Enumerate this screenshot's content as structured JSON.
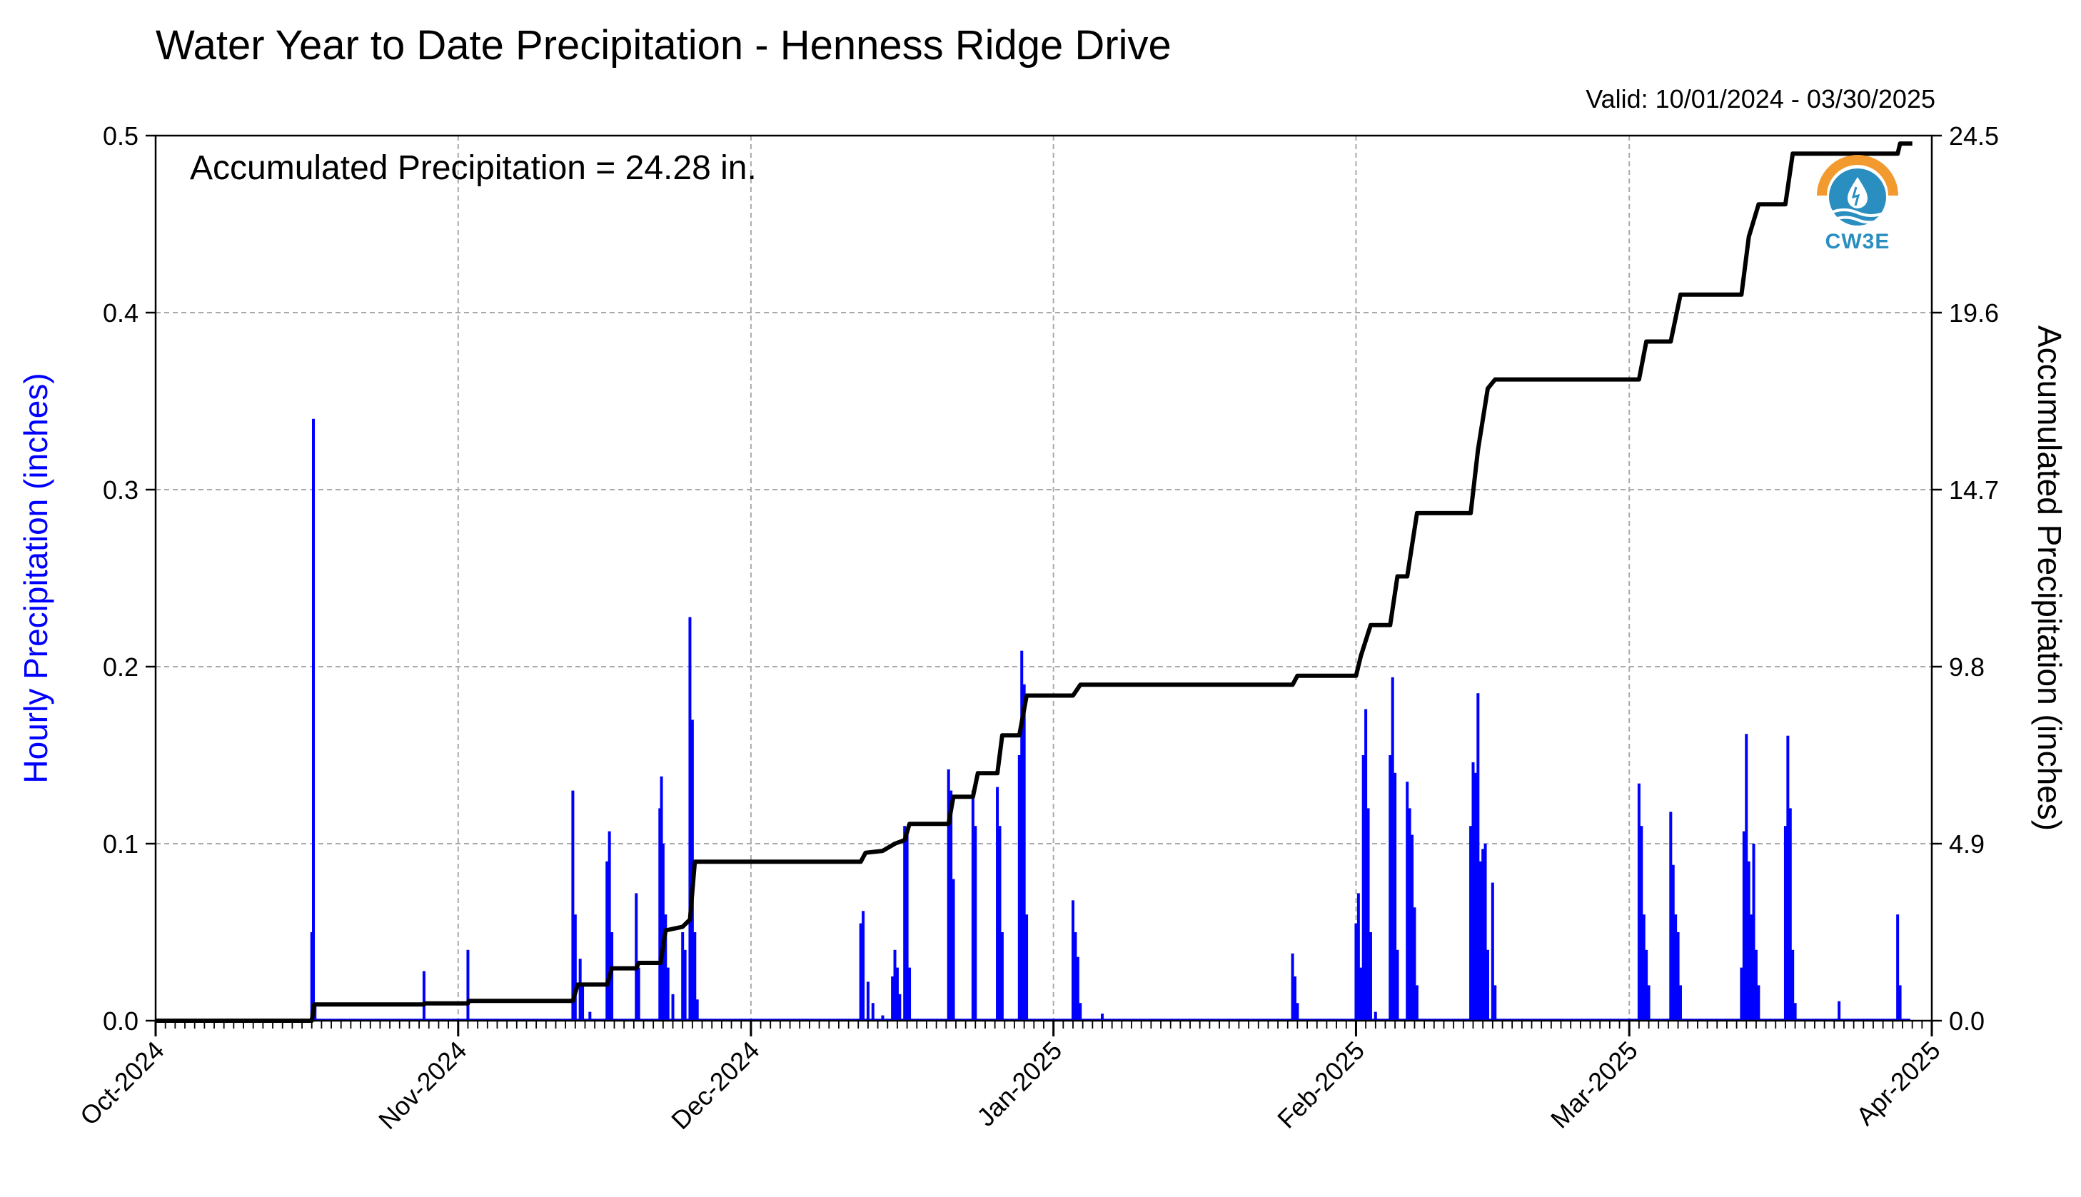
{
  "header": {
    "title": "Water Year to Date Precipitation - Henness Ridge Drive",
    "valid": "Valid: 10/01/2024 - 03/30/2025"
  },
  "annotation": "Accumulated Precipitation = 24.28 in.",
  "logo": {
    "text": "CW3E",
    "icon": "cw3e-water-drop-logo-icon",
    "colors": [
      "#f29a2e",
      "#2a8fc0"
    ]
  },
  "chart_data": {
    "type": "bar+line",
    "grid": true,
    "colors": {
      "hourly": "#0000ff",
      "accumulated": "#000000",
      "grid": "#aaaaaa"
    },
    "x_range": [
      "2024-10-01",
      "2025-04-01"
    ],
    "x_ticks": [
      "Oct-2024",
      "Nov-2024",
      "Dec-2024",
      "Jan-2025",
      "Feb-2025",
      "Mar-2025",
      "Apr-2025"
    ],
    "x_tick_dates": [
      "2024-10-01",
      "2024-11-01",
      "2024-12-01",
      "2025-01-01",
      "2025-02-01",
      "2025-03-01",
      "2025-04-01"
    ],
    "y_left": {
      "label": "Hourly Precipitation (inches)",
      "range": [
        0,
        0.5
      ],
      "ticks": [
        "0.0",
        "0.1",
        "0.2",
        "0.3",
        "0.4",
        "0.5"
      ]
    },
    "y_right": {
      "label": "Accumulated Precipitation (inches)",
      "range": [
        0,
        24.5
      ],
      "ticks": [
        "0.0",
        "4.9",
        "9.8",
        "14.7",
        "19.6",
        "24.5"
      ]
    },
    "series": [
      {
        "name": "Hourly Precipitation",
        "kind": "bar",
        "points": [
          [
            "2024-10-17T00:00",
            0.05
          ],
          [
            "2024-10-17T04:00",
            0.34
          ],
          [
            "2024-10-17T08:00",
            0.01
          ],
          [
            "2024-10-28T12:00",
            0.028
          ],
          [
            "2024-11-02T00:00",
            0.04
          ],
          [
            "2024-11-12T18:00",
            0.13
          ],
          [
            "2024-11-13T00:00",
            0.06
          ],
          [
            "2024-11-13T12:00",
            0.035
          ],
          [
            "2024-11-13T18:00",
            0.02
          ],
          [
            "2024-11-14T12:00",
            0.005
          ],
          [
            "2024-11-16T06:00",
            0.09
          ],
          [
            "2024-11-16T12:00",
            0.107
          ],
          [
            "2024-11-16T18:00",
            0.05
          ],
          [
            "2024-11-19T06:00",
            0.072
          ],
          [
            "2024-11-19T12:00",
            0.03
          ],
          [
            "2024-11-21T16:00",
            0.12
          ],
          [
            "2024-11-21T20:00",
            0.138
          ],
          [
            "2024-11-22T00:00",
            0.1
          ],
          [
            "2024-11-22T06:00",
            0.06
          ],
          [
            "2024-11-22T12:00",
            0.03
          ],
          [
            "2024-11-23T00:00",
            0.015
          ],
          [
            "2024-11-24T00:00",
            0.05
          ],
          [
            "2024-11-24T06:00",
            0.04
          ],
          [
            "2024-11-24T18:00",
            0.228
          ],
          [
            "2024-11-25T00:00",
            0.17
          ],
          [
            "2024-11-25T06:00",
            0.05
          ],
          [
            "2024-11-25T12:00",
            0.012
          ],
          [
            "2024-12-12T06:00",
            0.055
          ],
          [
            "2024-12-12T12:00",
            0.062
          ],
          [
            "2024-12-13T00:00",
            0.022
          ],
          [
            "2024-12-13T12:00",
            0.01
          ],
          [
            "2024-12-14T12:00",
            0.003
          ],
          [
            "2024-12-15T12:00",
            0.025
          ],
          [
            "2024-12-15T18:00",
            0.04
          ],
          [
            "2024-12-16T00:00",
            0.03
          ],
          [
            "2024-12-16T06:00",
            0.015
          ],
          [
            "2024-12-16T18:00",
            0.11
          ],
          [
            "2024-12-17T00:00",
            0.105
          ],
          [
            "2024-12-17T06:00",
            0.03
          ],
          [
            "2024-12-21T06:00",
            0.142
          ],
          [
            "2024-12-21T12:00",
            0.13
          ],
          [
            "2024-12-21T18:00",
            0.08
          ],
          [
            "2024-12-23T18:00",
            0.13
          ],
          [
            "2024-12-24T00:00",
            0.11
          ],
          [
            "2024-12-26T06:00",
            0.132
          ],
          [
            "2024-12-26T12:00",
            0.11
          ],
          [
            "2024-12-26T18:00",
            0.05
          ],
          [
            "2024-12-28T12:00",
            0.15
          ],
          [
            "2024-12-28T18:00",
            0.209
          ],
          [
            "2024-12-29T00:00",
            0.19
          ],
          [
            "2024-12-29T06:00",
            0.06
          ],
          [
            "2025-01-03T00:00",
            0.068
          ],
          [
            "2025-01-03T06:00",
            0.05
          ],
          [
            "2025-01-03T12:00",
            0.036
          ],
          [
            "2025-01-03T18:00",
            0.01
          ],
          [
            "2025-01-06T00:00",
            0.004
          ],
          [
            "2025-01-25T12:00",
            0.038
          ],
          [
            "2025-01-25T18:00",
            0.025
          ],
          [
            "2025-01-26T00:00",
            0.01
          ],
          [
            "2025-02-01T00:00",
            0.055
          ],
          [
            "2025-02-01T06:00",
            0.072
          ],
          [
            "2025-02-01T12:00",
            0.03
          ],
          [
            "2025-02-01T18:00",
            0.15
          ],
          [
            "2025-02-02T00:00",
            0.176
          ],
          [
            "2025-02-02T06:00",
            0.12
          ],
          [
            "2025-02-02T12:00",
            0.05
          ],
          [
            "2025-02-03T00:00",
            0.005
          ],
          [
            "2025-02-04T12:00",
            0.15
          ],
          [
            "2025-02-04T18:00",
            0.194
          ],
          [
            "2025-02-05T00:00",
            0.14
          ],
          [
            "2025-02-05T06:00",
            0.04
          ],
          [
            "2025-02-06T06:00",
            0.135
          ],
          [
            "2025-02-06T12:00",
            0.12
          ],
          [
            "2025-02-06T18:00",
            0.105
          ],
          [
            "2025-02-07T00:00",
            0.064
          ],
          [
            "2025-02-07T06:00",
            0.02
          ],
          [
            "2025-02-12T18:00",
            0.11
          ],
          [
            "2025-02-13T00:00",
            0.146
          ],
          [
            "2025-02-13T06:00",
            0.14
          ],
          [
            "2025-02-13T12:00",
            0.185
          ],
          [
            "2025-02-13T18:00",
            0.09
          ],
          [
            "2025-02-14T00:00",
            0.097
          ],
          [
            "2025-02-14T06:00",
            0.1
          ],
          [
            "2025-02-14T12:00",
            0.04
          ],
          [
            "2025-02-15T00:00",
            0.078
          ],
          [
            "2025-02-15T06:00",
            0.02
          ],
          [
            "2025-03-02T00:00",
            0.134
          ],
          [
            "2025-03-02T06:00",
            0.11
          ],
          [
            "2025-03-02T12:00",
            0.06
          ],
          [
            "2025-03-02T18:00",
            0.04
          ],
          [
            "2025-03-03T00:00",
            0.02
          ],
          [
            "2025-03-05T06:00",
            0.118
          ],
          [
            "2025-03-05T12:00",
            0.088
          ],
          [
            "2025-03-05T18:00",
            0.06
          ],
          [
            "2025-03-06T00:00",
            0.05
          ],
          [
            "2025-03-06T06:00",
            0.02
          ],
          [
            "2025-03-12T12:00",
            0.03
          ],
          [
            "2025-03-12T18:00",
            0.107
          ],
          [
            "2025-03-13T00:00",
            0.162
          ],
          [
            "2025-03-13T06:00",
            0.09
          ],
          [
            "2025-03-13T12:00",
            0.06
          ],
          [
            "2025-03-13T18:00",
            0.1
          ],
          [
            "2025-03-14T00:00",
            0.04
          ],
          [
            "2025-03-14T06:00",
            0.02
          ],
          [
            "2025-03-17T00:00",
            0.11
          ],
          [
            "2025-03-17T06:00",
            0.161
          ],
          [
            "2025-03-17T12:00",
            0.12
          ],
          [
            "2025-03-17T18:00",
            0.04
          ],
          [
            "2025-03-18T00:00",
            0.01
          ],
          [
            "2025-03-22T12:00",
            0.011
          ],
          [
            "2025-03-28T12:00",
            0.06
          ],
          [
            "2025-03-28T18:00",
            0.02
          ]
        ]
      },
      {
        "name": "Accumulated Precipitation",
        "kind": "step-line",
        "points": [
          [
            "2024-10-01T00:00",
            0.0
          ],
          [
            "2024-10-17T00:00",
            0.0
          ],
          [
            "2024-10-17T06:00",
            0.45
          ],
          [
            "2024-10-28T12:00",
            0.45
          ],
          [
            "2024-10-28T14:00",
            0.48
          ],
          [
            "2024-11-02T00:00",
            0.48
          ],
          [
            "2024-11-02T02:00",
            0.55
          ],
          [
            "2024-11-12T18:00",
            0.55
          ],
          [
            "2024-11-13T06:00",
            1.0
          ],
          [
            "2024-11-16T06:00",
            1.0
          ],
          [
            "2024-11-16T18:00",
            1.45
          ],
          [
            "2024-11-19T06:00",
            1.45
          ],
          [
            "2024-11-19T12:00",
            1.6
          ],
          [
            "2024-11-21T18:00",
            1.6
          ],
          [
            "2024-11-22T06:00",
            2.5
          ],
          [
            "2024-11-24T00:00",
            2.6
          ],
          [
            "2024-11-24T18:00",
            2.8
          ],
          [
            "2024-11-25T06:00",
            4.4
          ],
          [
            "2024-12-12T06:00",
            4.4
          ],
          [
            "2024-12-12T18:00",
            4.65
          ],
          [
            "2024-12-14T12:00",
            4.7
          ],
          [
            "2024-12-15T18:00",
            4.9
          ],
          [
            "2024-12-16T18:00",
            5.0
          ],
          [
            "2024-12-17T06:00",
            5.45
          ],
          [
            "2024-12-21T06:00",
            5.45
          ],
          [
            "2024-12-21T18:00",
            6.2
          ],
          [
            "2024-12-23T18:00",
            6.2
          ],
          [
            "2024-12-24T06:00",
            6.85
          ],
          [
            "2024-12-26T06:00",
            6.85
          ],
          [
            "2024-12-26T18:00",
            7.9
          ],
          [
            "2024-12-28T12:00",
            7.9
          ],
          [
            "2024-12-29T06:00",
            9.0
          ],
          [
            "2025-01-03T00:00",
            9.0
          ],
          [
            "2025-01-03T18:00",
            9.3
          ],
          [
            "2025-01-25T12:00",
            9.3
          ],
          [
            "2025-01-26T00:00",
            9.55
          ],
          [
            "2025-02-01T00:00",
            9.55
          ],
          [
            "2025-02-01T12:00",
            10.1
          ],
          [
            "2025-02-02T12:00",
            10.95
          ],
          [
            "2025-02-04T12:00",
            10.95
          ],
          [
            "2025-02-05T06:00",
            12.3
          ],
          [
            "2025-02-06T06:00",
            12.3
          ],
          [
            "2025-02-07T06:00",
            14.05
          ],
          [
            "2025-02-12T18:00",
            14.05
          ],
          [
            "2025-02-13T12:00",
            15.8
          ],
          [
            "2025-02-14T12:00",
            17.5
          ],
          [
            "2025-02-15T06:00",
            17.75
          ],
          [
            "2025-03-02T00:00",
            17.75
          ],
          [
            "2025-03-02T18:00",
            18.8
          ],
          [
            "2025-03-05T06:00",
            18.8
          ],
          [
            "2025-03-06T06:00",
            20.1
          ],
          [
            "2025-03-12T12:00",
            20.1
          ],
          [
            "2025-03-13T06:00",
            21.7
          ],
          [
            "2025-03-14T06:00",
            22.6
          ],
          [
            "2025-03-17T00:00",
            22.6
          ],
          [
            "2025-03-17T18:00",
            24.0
          ],
          [
            "2025-03-28T12:00",
            24.0
          ],
          [
            "2025-03-28T18:00",
            24.28
          ],
          [
            "2025-03-30T00:00",
            24.28
          ]
        ]
      }
    ]
  }
}
